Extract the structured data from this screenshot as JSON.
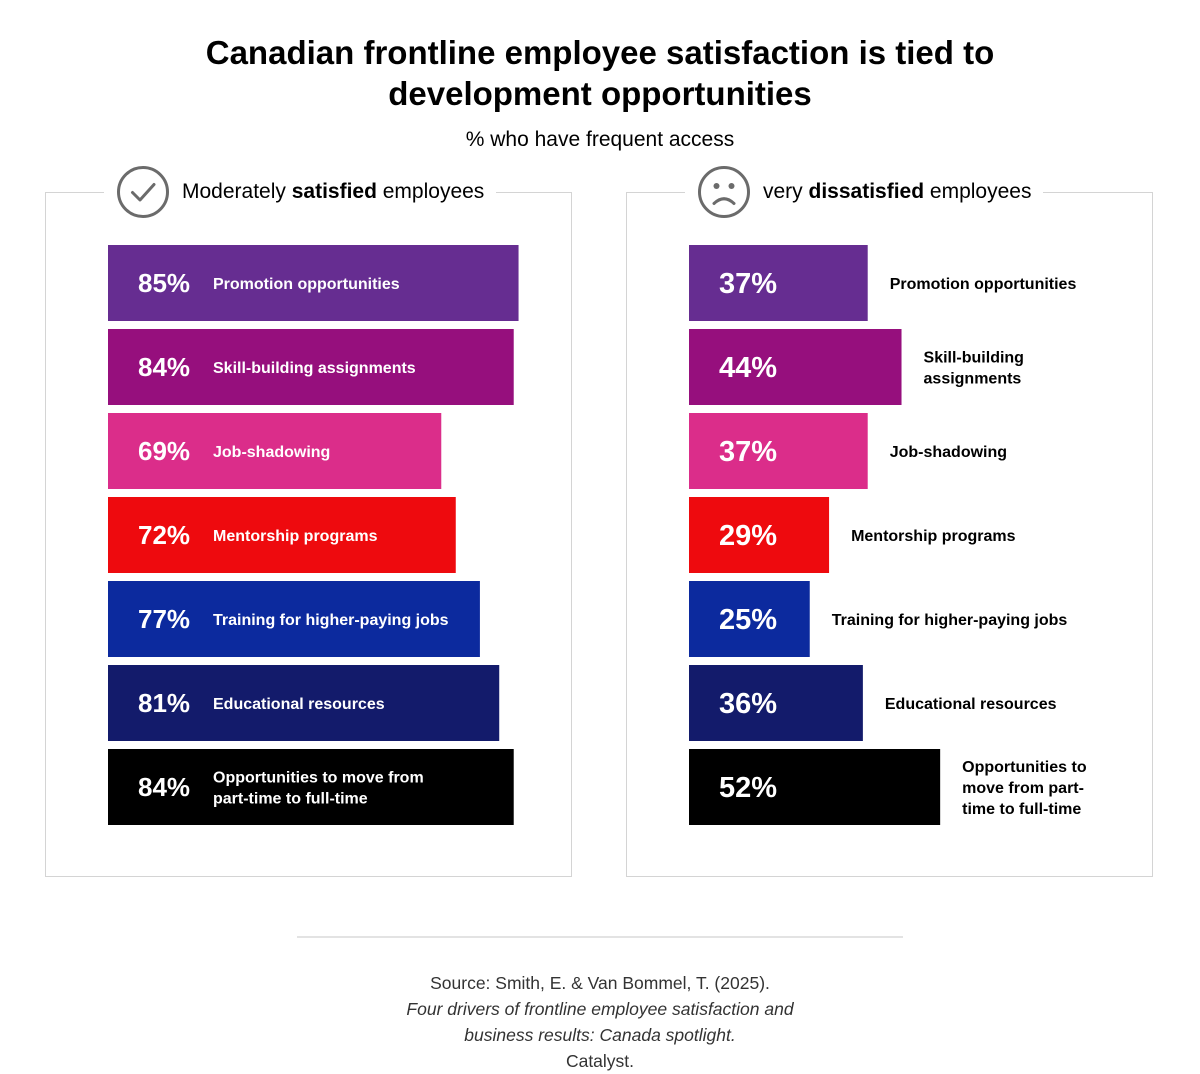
{
  "title_lines": [
    "Canadian frontline employee satisfaction is tied to",
    "development opportunities"
  ],
  "subtitle": "% who have frequent access",
  "source": {
    "line1_prefix": "Source: Smith, E. & Van Bommel, T. (2025). ",
    "line1_italic": "Four drivers of frontline employee satisfaction and",
    "line2_italic": "business results: Canada spotlight.",
    "line2_suffix": " Catalyst."
  },
  "panels": {
    "left": {
      "icon": "check-circle-icon",
      "label_pre": "Moderately ",
      "label_bold": "satisfied",
      "label_post": " employees"
    },
    "right": {
      "icon": "sad-face-icon",
      "label_pre": "very ",
      "label_bold": "dissatisfied",
      "label_post": " employees"
    }
  },
  "chart_data": [
    {
      "type": "bar",
      "group": "Moderately satisfied employees",
      "unit": "%",
      "categories": [
        "Promotion opportunities",
        "Skill-building assignments",
        "Job-shadowing",
        "Mentorship programs",
        "Training for higher-paying jobs",
        "Educational resources",
        "Opportunities to move from part-time to full-time"
      ],
      "label_lines": [
        [
          "Promotion opportunities"
        ],
        [
          "Skill-building assignments"
        ],
        [
          "Job-shadowing"
        ],
        [
          "Mentorship programs"
        ],
        [
          "Training for higher-paying jobs"
        ],
        [
          "Educational resources"
        ],
        [
          "Opportunities to move from",
          "part-time to full-time"
        ]
      ],
      "values": [
        85,
        84,
        69,
        72,
        77,
        81,
        84
      ],
      "colors": [
        "#662d91",
        "#960f7d",
        "#db2d8a",
        "#ee0a0e",
        "#0c2a9e",
        "#131b6b",
        "#000000"
      ]
    },
    {
      "type": "bar",
      "group": "very dissatisfied employees",
      "unit": "%",
      "categories": [
        "Promotion opportunities",
        "Skill-building assignments",
        "Job-shadowing",
        "Mentorship programs",
        "Training for higher-paying jobs",
        "Educational resources",
        "Opportunities to move from part-time to full-time"
      ],
      "label_lines": [
        [
          "Promotion opportunities"
        ],
        [
          "Skill-building",
          "assignments"
        ],
        [
          "Job-shadowing"
        ],
        [
          "Mentorship programs"
        ],
        [
          "Training for higher-paying jobs"
        ],
        [
          "Educational resources"
        ],
        [
          "Opportunities to",
          "move from part-",
          "time to full-time"
        ]
      ],
      "values": [
        37,
        44,
        37,
        29,
        25,
        36,
        52
      ],
      "colors": [
        "#662d91",
        "#960f7d",
        "#db2d8a",
        "#ee0a0e",
        "#0c2a9e",
        "#131b6b",
        "#000000"
      ]
    }
  ]
}
